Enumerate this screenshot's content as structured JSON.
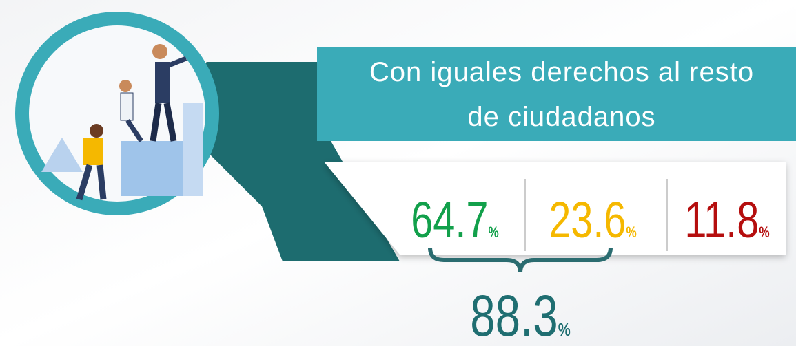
{
  "heading": "Con iguales derechos al resto de ciudadanos",
  "stats": [
    {
      "value": 64.7,
      "unit": "%",
      "color": "#12a04b"
    },
    {
      "value": 23.6,
      "unit": "%",
      "color": "#f5b800"
    },
    {
      "value": 11.8,
      "unit": "%",
      "color": "#b50e0e"
    }
  ],
  "total": {
    "value": 88.3,
    "unit": "%",
    "color": "#1f6e71"
  }
}
